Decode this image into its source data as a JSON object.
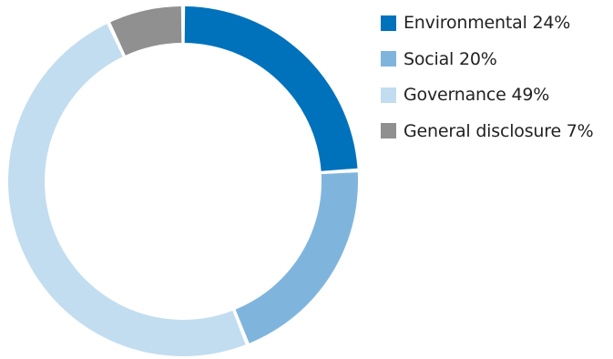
{
  "chart_data": {
    "type": "pie",
    "title": "",
    "categories": [
      "Environmental",
      "Social",
      "Governance",
      "General disclosure"
    ],
    "values": [
      24,
      20,
      49,
      7
    ],
    "unit": "%",
    "colors": [
      "#0072bc",
      "#7fb5dd",
      "#c2ddef",
      "#909090"
    ],
    "legend_position": "right",
    "legend_labels": [
      "Environmental 24%",
      "Social 20%",
      "Governance 49%",
      "General disclosure 7%"
    ]
  }
}
